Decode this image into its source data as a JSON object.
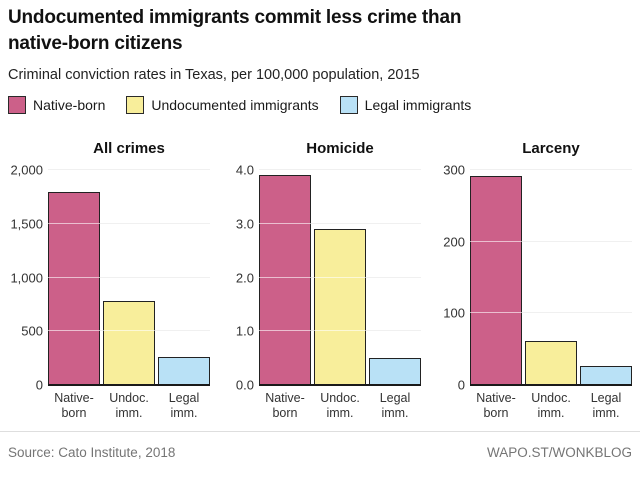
{
  "header": {
    "title_line1": "Undocumented immigrants commit less crime than",
    "title_line2": "native-born citizens",
    "subtitle": "Criminal conviction rates in Texas, per 100,000 population, 2015"
  },
  "legend": {
    "items": [
      {
        "label": "Native-born",
        "color": "#cc6089"
      },
      {
        "label": "Undocumented immigrants",
        "color": "#f8ee9b"
      },
      {
        "label": "Legal immigrants",
        "color": "#b9e1f6"
      }
    ]
  },
  "colors": {
    "bar_border": "#222222",
    "gridline": "#d9d9d9",
    "axis_line": "#1a1a1a"
  },
  "chart_data": [
    {
      "type": "bar",
      "title": "All crimes",
      "categories": [
        "Native-\nborn",
        "Undoc.\nimm.",
        "Legal\nimm."
      ],
      "values": [
        1797,
        780,
        262
      ],
      "ylim": [
        0,
        2000
      ],
      "yticks": [
        0,
        500,
        1000,
        1500,
        2000
      ],
      "ytick_labels": [
        "0",
        "500",
        "1,000",
        "1,500",
        "2,000"
      ],
      "bar_colors": [
        "#cc6089",
        "#f8ee9b",
        "#b9e1f6"
      ],
      "grid": true,
      "legend_position": "top"
    },
    {
      "type": "bar",
      "title": "Homicide",
      "categories": [
        "Native-\nborn",
        "Undoc.\nimm.",
        "Legal\nimm."
      ],
      "values": [
        3.9,
        2.9,
        0.5
      ],
      "ylim": [
        0,
        4
      ],
      "yticks": [
        0,
        1,
        2,
        3,
        4
      ],
      "ytick_labels": [
        "0.0",
        "1.0",
        "2.0",
        "3.0",
        "4.0"
      ],
      "bar_colors": [
        "#cc6089",
        "#f8ee9b",
        "#b9e1f6"
      ],
      "grid": true,
      "legend_position": "top"
    },
    {
      "type": "bar",
      "title": "Larceny",
      "categories": [
        "Native-\nborn",
        "Undoc.\nimm.",
        "Legal\nimm."
      ],
      "values": [
        291,
        61,
        27
      ],
      "ylim": [
        0,
        300
      ],
      "yticks": [
        0,
        100,
        200,
        300
      ],
      "ytick_labels": [
        "0",
        "100",
        "200",
        "300"
      ],
      "bar_colors": [
        "#cc6089",
        "#f8ee9b",
        "#b9e1f6"
      ],
      "grid": true,
      "legend_position": "top"
    }
  ],
  "footer": {
    "source": "Source: Cato Institute, 2018",
    "credit": "WAPO.ST/WONKBLOG"
  }
}
